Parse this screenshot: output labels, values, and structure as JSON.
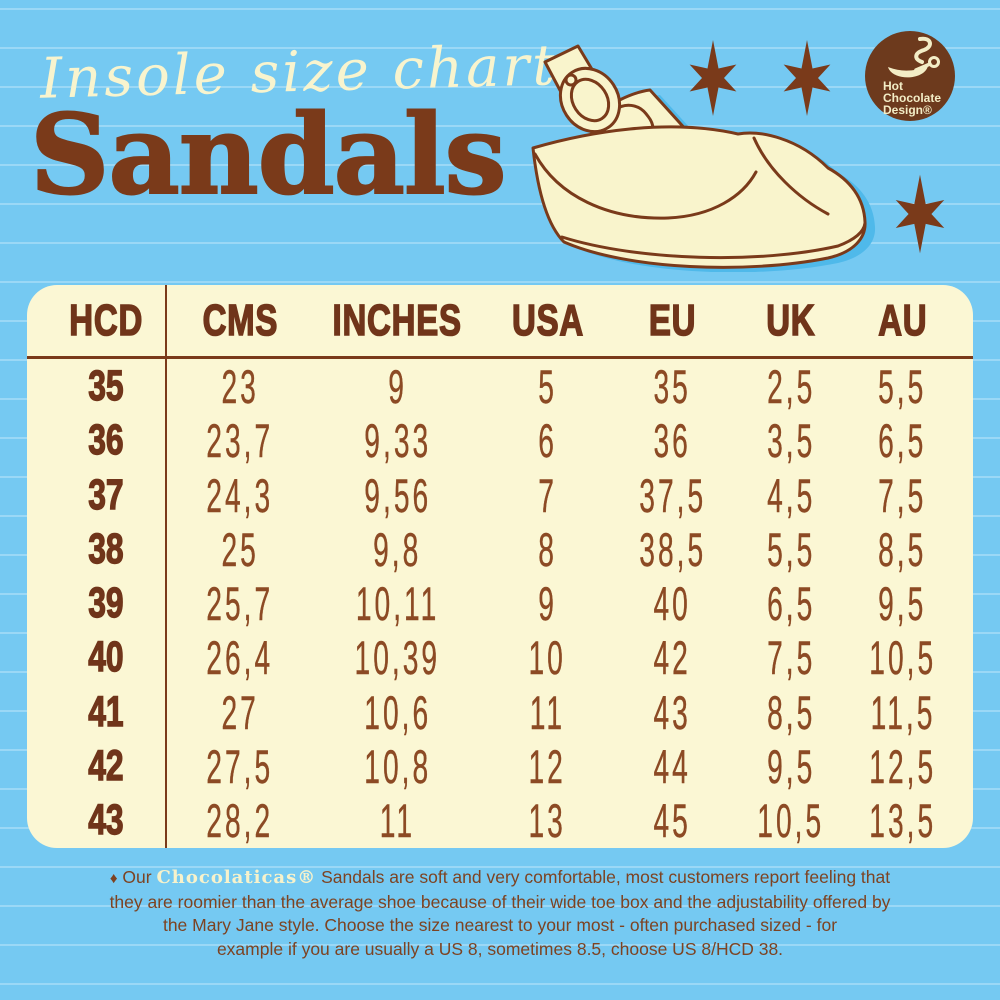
{
  "header": {
    "script_title": "Insole size chart",
    "main_title": "Sandals",
    "logo": {
      "line1": "Hot",
      "line2": "Chocolate",
      "line3": "Design®"
    }
  },
  "table": {
    "headers": [
      "HCD",
      "CMS",
      "INCHES",
      "USA",
      "EU",
      "UK",
      "AU"
    ],
    "rows": [
      [
        "35",
        "23",
        "9",
        "5",
        "35",
        "2,5",
        "5,5"
      ],
      [
        "36",
        "23,7",
        "9,33",
        "6",
        "36",
        "3,5",
        "6,5"
      ],
      [
        "37",
        "24,3",
        "9,56",
        "7",
        "37,5",
        "4,5",
        "7,5"
      ],
      [
        "38",
        "25",
        "9,8",
        "8",
        "38,5",
        "5,5",
        "8,5"
      ],
      [
        "39",
        "25,7",
        "10,11",
        "9",
        "40",
        "6,5",
        "9,5"
      ],
      [
        "40",
        "26,4",
        "10,39",
        "10",
        "42",
        "7,5",
        "10,5"
      ],
      [
        "41",
        "27",
        "10,6",
        "11",
        "43",
        "8,5",
        "11,5"
      ],
      [
        "42",
        "27,5",
        "10,8",
        "12",
        "44",
        "9,5",
        "12,5"
      ],
      [
        "43",
        "28,2",
        "11",
        "13",
        "45",
        "10,5",
        "13,5"
      ]
    ]
  },
  "footer": {
    "bullet": "♦",
    "our": " Our ",
    "brand": "Chocolaticas®",
    "line1_rest": " Sandals are soft and very comfortable, most customers report feeling that",
    "line2": "they are roomier than the average shoe because of their wide toe box and the adjustability offered by",
    "line3": "the Mary Jane style. Choose the size nearest to your most - often  purchased sized - for",
    "line4": "example if you are usually a US 8, sometimes 8.5, choose US 8/HCD 38."
  },
  "colors": {
    "background_blue": "#75C9F2",
    "stripe_blue": "#9FDAF5",
    "cream": "#F9F5D0",
    "table_cream": "#FBF7D4",
    "brown_dark": "#70351A",
    "brown_title": "#7A3A1A",
    "brown_rust": "#8C4A24",
    "shadow_blue": "#4FB9EA"
  }
}
